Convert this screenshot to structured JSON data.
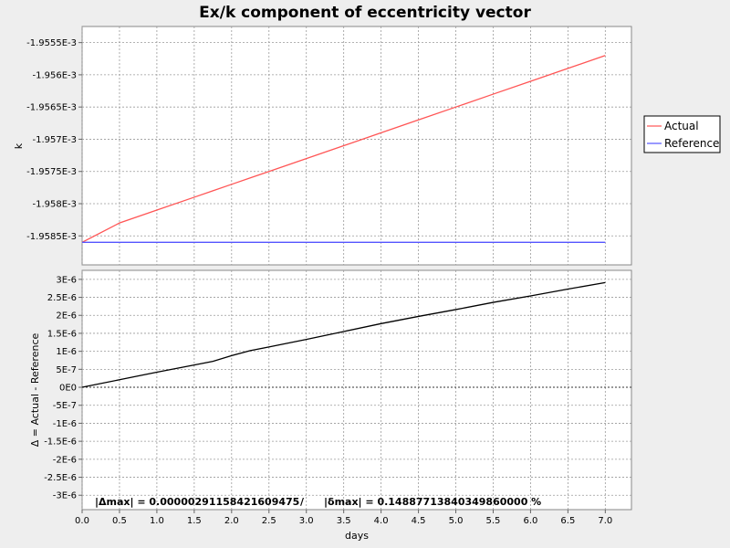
{
  "chart_data": [
    {
      "type": "line",
      "title": "Ex/k component of eccentricity vector",
      "ylabel": "k",
      "xlim": [
        0,
        7.35
      ],
      "ylim": [
        -0.00195895,
        -0.00195525
      ],
      "xticks": [
        0.0,
        0.5,
        1.0,
        1.5,
        2.0,
        2.5,
        3.0,
        3.5,
        4.0,
        4.5,
        5.0,
        5.5,
        6.0,
        6.5,
        7.0
      ],
      "xtick_labels": [
        "0.0",
        "0.5",
        "1.0",
        "1.5",
        "2.0",
        "2.5",
        "3.0",
        "3.5",
        "4.0",
        "4.5",
        "5.0",
        "5.5",
        "6.0",
        "6.5",
        "7.0"
      ],
      "yticks": [
        -0.0019555,
        -0.001956,
        -0.0019565,
        -0.001957,
        -0.0019575,
        -0.001958,
        -0.0019585
      ],
      "ytick_labels": [
        "-1.9555E-3",
        "-1.956E-3",
        "-1.9565E-3",
        "-1.957E-3",
        "-1.9575E-3",
        "-1.958E-3",
        "-1.9585E-3"
      ],
      "grid": true,
      "legend_position": "right",
      "series": [
        {
          "name": "Actual",
          "color": "#ff5555",
          "x": [
            0.0,
            0.5,
            1.0,
            1.5,
            1.75,
            2.0,
            2.25,
            2.5,
            3.0,
            3.5,
            4.0,
            4.5,
            5.0,
            5.5,
            6.0,
            6.5,
            7.0
          ],
          "y": [
            -0.0019586,
            -0.0019583,
            -0.0019581,
            -0.0019579,
            -0.0019578,
            -0.0019577,
            -0.0019576,
            -0.0019575,
            -0.0019573,
            -0.0019571,
            -0.0019569,
            -0.0019567,
            -0.0019565,
            -0.0019563,
            -0.0019561,
            -0.0019559,
            -0.0019557
          ]
        },
        {
          "name": "Reference",
          "color": "#5555ff",
          "x": [
            0.0,
            7.0
          ],
          "y": [
            -0.0019586,
            -0.0019586
          ]
        }
      ]
    },
    {
      "type": "line",
      "ylabel": "Δ = Actual - Reference",
      "xlabel": "days",
      "xlim": [
        0,
        7.35
      ],
      "ylim": [
        -3.4e-06,
        3.25e-06
      ],
      "xticks": [
        0.0,
        0.5,
        1.0,
        1.5,
        2.0,
        2.5,
        3.0,
        3.5,
        4.0,
        4.5,
        5.0,
        5.5,
        6.0,
        6.5,
        7.0
      ],
      "xtick_labels": [
        "0.0",
        "0.5",
        "1.0",
        "1.5",
        "2.0",
        "2.5",
        "3.0",
        "3.5",
        "4.0",
        "4.5",
        "5.0",
        "5.5",
        "6.0",
        "6.5",
        "7.0"
      ],
      "yticks": [
        3e-06,
        2.5e-06,
        2e-06,
        1.5e-06,
        1e-06,
        5e-07,
        0,
        -5e-07,
        -1e-06,
        -1.5e-06,
        -2e-06,
        -2.5e-06,
        -3e-06
      ],
      "ytick_labels": [
        "3E-6",
        "2.5E-6",
        "2E-6",
        "1.5E-6",
        "1E-6",
        "5E-7",
        "0E0",
        "-5E-7",
        "-1E-6",
        "-1.5E-6",
        "-2E-6",
        "-2.5E-6",
        "-3E-6"
      ],
      "grid": true,
      "series": [
        {
          "name": "Δ",
          "color": "#000000",
          "x": [
            0.0,
            0.5,
            1.0,
            1.5,
            1.75,
            2.0,
            2.25,
            2.5,
            3.0,
            3.5,
            4.0,
            4.5,
            5.0,
            5.5,
            6.0,
            6.5,
            7.0
          ],
          "y": [
            0.0,
            2.1e-07,
            4.2e-07,
            6.2e-07,
            7.2e-07,
            8.8e-07,
            1.02e-06,
            1.12e-06,
            1.33e-06,
            1.55e-06,
            1.77e-06,
            1.97e-06,
            2.16e-06,
            2.36e-06,
            2.54e-06,
            2.73e-06,
            2.91e-06
          ]
        }
      ],
      "annotation": "|Δmax| = 0.0000029115842160947 5",
      "annotation_left": "|Δmax| = 0.00000291158421609475",
      "annotation_sep": "/",
      "annotation_right": "|δmax| = 0.14887713840349860000 %"
    }
  ],
  "legend": {
    "items": [
      {
        "label": "Actual",
        "color": "#ff5555"
      },
      {
        "label": "Reference",
        "color": "#5555ff"
      }
    ]
  }
}
